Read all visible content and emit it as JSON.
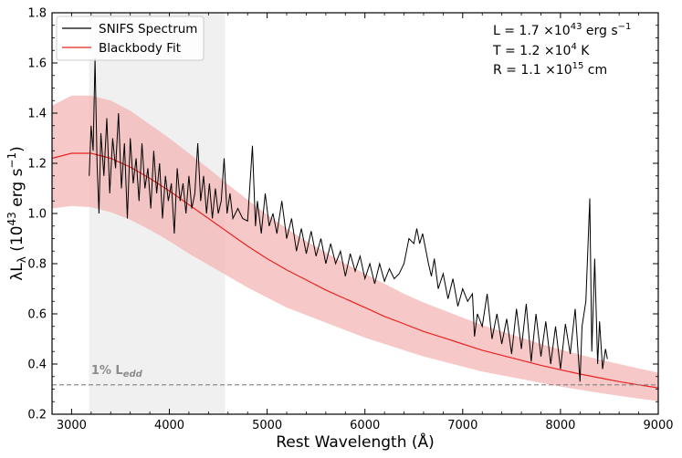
{
  "chart_data": {
    "type": "line",
    "xlabel_main": "Rest Wavelength (",
    "xlabel_unit": "Å",
    "xlabel_end": ")",
    "ylabel_lambda": "λL",
    "ylabel_sub": "λ",
    "ylabel_rest": " (10",
    "ylabel_exp": "43",
    "ylabel_unit": " erg s",
    "ylabel_exp2": "−1",
    "ylabel_close": ")",
    "xlim": [
      2800,
      9000
    ],
    "ylim": [
      0.2,
      1.8
    ],
    "xticks": [
      3000,
      4000,
      5000,
      6000,
      7000,
      8000,
      9000
    ],
    "xtick_labels": [
      "3000",
      "4000",
      "5000",
      "6000",
      "7000",
      "8000",
      "9000"
    ],
    "yticks": [
      0.2,
      0.4,
      0.6,
      0.8,
      1.0,
      1.2,
      1.4,
      1.6,
      1.8
    ],
    "ytick_labels": [
      "0.2",
      "0.4",
      "0.6",
      "0.8",
      "1.0",
      "1.2",
      "1.4",
      "1.6",
      "1.8"
    ],
    "shaded_region": {
      "x0": 3180,
      "x1": 4570,
      "color": "#f0f0f0"
    },
    "ledd_line": {
      "y": 0.317,
      "label_main": "1% L",
      "label_sub": "edd",
      "label_x": 3200,
      "label_y": 0.36,
      "color": "#808080"
    },
    "series": [
      {
        "name": "SNIFS Spectrum",
        "color": "#000000",
        "x": [
          3180,
          3200,
          3220,
          3240,
          3260,
          3280,
          3300,
          3330,
          3360,
          3390,
          3420,
          3450,
          3480,
          3510,
          3540,
          3570,
          3600,
          3630,
          3660,
          3690,
          3720,
          3750,
          3780,
          3810,
          3840,
          3870,
          3900,
          3930,
          3960,
          3990,
          4020,
          4050,
          4080,
          4110,
          4140,
          4170,
          4200,
          4230,
          4260,
          4290,
          4320,
          4350,
          4380,
          4410,
          4440,
          4470,
          4500,
          4530,
          4560,
          4590,
          4620,
          4650,
          4700,
          4750,
          4800,
          4850,
          4880,
          4900,
          4940,
          4980,
          5020,
          5060,
          5100,
          5150,
          5200,
          5250,
          5300,
          5350,
          5400,
          5450,
          5500,
          5550,
          5600,
          5650,
          5700,
          5750,
          5800,
          5850,
          5900,
          5950,
          6000,
          6050,
          6100,
          6150,
          6200,
          6250,
          6300,
          6350,
          6400,
          6450,
          6500,
          6530,
          6560,
          6590,
          6620,
          6650,
          6680,
          6710,
          6750,
          6800,
          6850,
          6900,
          6950,
          7000,
          7050,
          7100,
          7120,
          7150,
          7200,
          7250,
          7300,
          7350,
          7400,
          7450,
          7500,
          7550,
          7600,
          7650,
          7700,
          7750,
          7800,
          7850,
          7900,
          7950,
          8000,
          8050,
          8100,
          8150,
          8200,
          8220,
          8260,
          8300,
          8320,
          8350,
          8380,
          8400,
          8430,
          8460,
          8480
        ],
        "y": [
          1.15,
          1.35,
          1.25,
          1.62,
          1.2,
          1.0,
          1.32,
          1.15,
          1.38,
          1.08,
          1.3,
          1.18,
          1.4,
          1.1,
          1.28,
          0.98,
          1.3,
          1.12,
          1.22,
          1.05,
          1.28,
          1.1,
          1.18,
          1.02,
          1.25,
          1.08,
          1.2,
          0.98,
          1.15,
          1.05,
          1.12,
          0.92,
          1.18,
          1.05,
          1.12,
          1.0,
          1.15,
          1.02,
          1.08,
          1.28,
          1.05,
          1.15,
          1.0,
          1.12,
          0.98,
          1.1,
          1.0,
          1.05,
          1.22,
          1.0,
          1.08,
          0.98,
          1.02,
          0.98,
          0.97,
          1.27,
          0.95,
          1.05,
          0.92,
          1.08,
          0.95,
          1.0,
          0.92,
          1.05,
          0.9,
          0.98,
          0.85,
          0.94,
          0.84,
          0.93,
          0.83,
          0.9,
          0.8,
          0.88,
          0.8,
          0.85,
          0.75,
          0.84,
          0.77,
          0.83,
          0.74,
          0.8,
          0.72,
          0.8,
          0.73,
          0.78,
          0.74,
          0.76,
          0.8,
          0.9,
          0.88,
          0.94,
          0.88,
          0.92,
          0.86,
          0.8,
          0.75,
          0.82,
          0.7,
          0.76,
          0.66,
          0.74,
          0.63,
          0.7,
          0.65,
          0.68,
          0.51,
          0.6,
          0.55,
          0.68,
          0.5,
          0.6,
          0.48,
          0.58,
          0.44,
          0.62,
          0.46,
          0.64,
          0.41,
          0.6,
          0.43,
          0.57,
          0.4,
          0.55,
          0.38,
          0.56,
          0.44,
          0.62,
          0.33,
          0.55,
          0.65,
          1.06,
          0.45,
          0.82,
          0.4,
          0.57,
          0.38,
          0.46,
          0.42
        ]
      },
      {
        "name": "Blackbody Fit",
        "color": "#e8231f",
        "x": [
          2800,
          3000,
          3200,
          3400,
          3600,
          3800,
          4000,
          4200,
          4400,
          4600,
          4800,
          5000,
          5200,
          5400,
          5600,
          5800,
          6000,
          6200,
          6400,
          6600,
          6800,
          7000,
          7200,
          7400,
          7600,
          7800,
          8000,
          8200,
          8400,
          8600,
          8800,
          9000
        ],
        "y": [
          1.22,
          1.24,
          1.24,
          1.22,
          1.185,
          1.14,
          1.09,
          1.035,
          0.98,
          0.925,
          0.87,
          0.82,
          0.775,
          0.735,
          0.695,
          0.66,
          0.625,
          0.59,
          0.56,
          0.53,
          0.505,
          0.48,
          0.455,
          0.435,
          0.415,
          0.395,
          0.377,
          0.36,
          0.345,
          0.33,
          0.317,
          0.305
        ],
        "band_upper": [
          1.43,
          1.47,
          1.47,
          1.45,
          1.41,
          1.355,
          1.3,
          1.24,
          1.18,
          1.115,
          1.055,
          0.995,
          0.94,
          0.89,
          0.845,
          0.8,
          0.76,
          0.72,
          0.68,
          0.645,
          0.615,
          0.585,
          0.555,
          0.53,
          0.505,
          0.48,
          0.458,
          0.437,
          0.418,
          0.4,
          0.382,
          0.366
        ],
        "band_lower": [
          1.02,
          1.03,
          1.025,
          1.005,
          0.975,
          0.935,
          0.89,
          0.84,
          0.795,
          0.75,
          0.705,
          0.665,
          0.625,
          0.595,
          0.565,
          0.535,
          0.505,
          0.48,
          0.455,
          0.43,
          0.41,
          0.39,
          0.37,
          0.355,
          0.34,
          0.325,
          0.31,
          0.297,
          0.285,
          0.273,
          0.262,
          0.252
        ],
        "band_color": "#f4b6b6"
      }
    ],
    "legend": {
      "position": "top-left",
      "items": [
        {
          "label": "SNIFS Spectrum",
          "color": "#000000"
        },
        {
          "label": "Blackbody Fit",
          "color": "#e8231f"
        }
      ]
    },
    "annotations": {
      "line1": {
        "prefix": "L = 1.7 ×10",
        "exp": "43",
        "suffix": " erg s",
        "exp2": "−1"
      },
      "line2": {
        "prefix": "T = 1.2 ×10",
        "exp": "4",
        "suffix": " K"
      },
      "line3": {
        "prefix": "R = 1.1 ×10",
        "exp": "15",
        "suffix": " cm"
      }
    }
  }
}
